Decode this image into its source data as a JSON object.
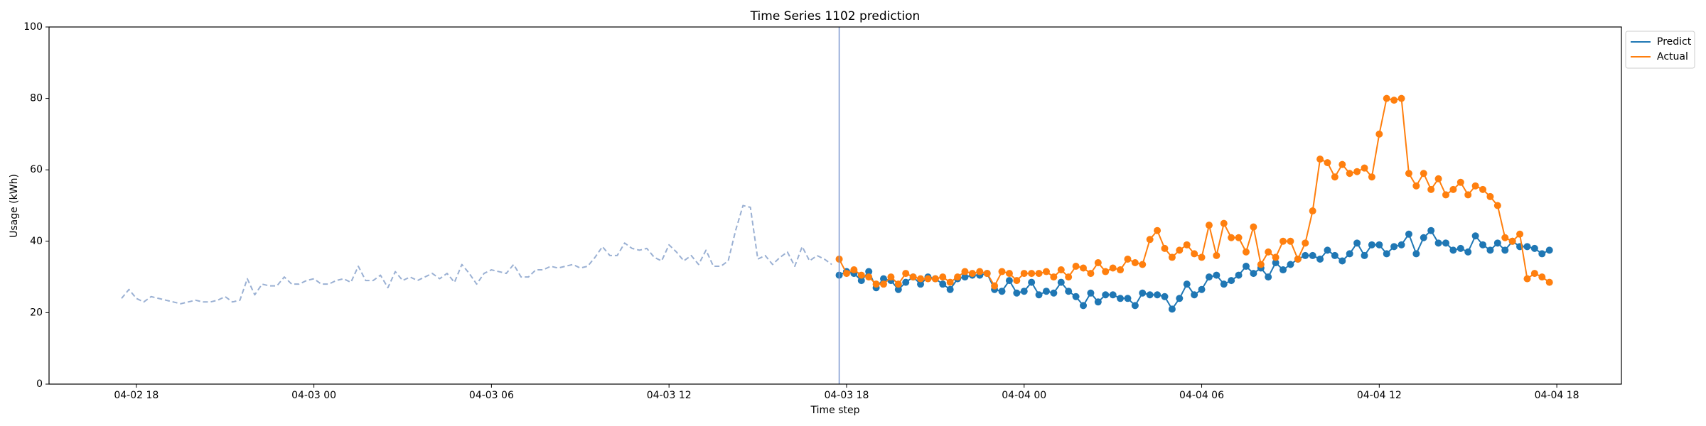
{
  "chart_data": {
    "type": "line",
    "title": "Time Series 1102 prediction",
    "x_label": "Time step",
    "y_label": "Usage (kWh)",
    "x": [
      "04-02 17:30",
      "04-02 17:45",
      "04-02 18:00",
      "04-02 18:15",
      "04-02 18:30",
      "04-02 18:45",
      "04-02 19:00",
      "04-02 19:15",
      "04-02 19:30",
      "04-02 19:45",
      "04-02 20:00",
      "04-02 20:15",
      "04-02 20:30",
      "04-02 20:45",
      "04-02 21:00",
      "04-02 21:15",
      "04-02 21:30",
      "04-02 21:45",
      "04-02 22:00",
      "04-02 22:15",
      "04-02 22:30",
      "04-02 22:45",
      "04-02 23:00",
      "04-02 23:15",
      "04-02 23:30",
      "04-02 23:45",
      "04-03 00:00",
      "04-03 00:15",
      "04-03 00:30",
      "04-03 00:45",
      "04-03 01:00",
      "04-03 01:15",
      "04-03 01:30",
      "04-03 01:45",
      "04-03 02:00",
      "04-03 02:15",
      "04-03 02:30",
      "04-03 02:45",
      "04-03 03:00",
      "04-03 03:15",
      "04-03 03:30",
      "04-03 03:45",
      "04-03 04:00",
      "04-03 04:15",
      "04-03 04:30",
      "04-03 04:45",
      "04-03 05:00",
      "04-03 05:15",
      "04-03 05:30",
      "04-03 05:45",
      "04-03 06:00",
      "04-03 06:15",
      "04-03 06:30",
      "04-03 06:45",
      "04-03 07:00",
      "04-03 07:15",
      "04-03 07:30",
      "04-03 07:45",
      "04-03 08:00",
      "04-03 08:15",
      "04-03 08:30",
      "04-03 08:45",
      "04-03 09:00",
      "04-03 09:15",
      "04-03 09:30",
      "04-03 09:45",
      "04-03 10:00",
      "04-03 10:15",
      "04-03 10:30",
      "04-03 10:45",
      "04-03 11:00",
      "04-03 11:15",
      "04-03 11:30",
      "04-03 11:45",
      "04-03 12:00",
      "04-03 12:15",
      "04-03 12:30",
      "04-03 12:45",
      "04-03 13:00",
      "04-03 13:15",
      "04-03 13:30",
      "04-03 13:45",
      "04-03 14:00",
      "04-03 14:15",
      "04-03 14:30",
      "04-03 14:45",
      "04-03 15:00",
      "04-03 15:15",
      "04-03 15:30",
      "04-03 15:45",
      "04-03 16:00",
      "04-03 16:15",
      "04-03 16:30",
      "04-03 16:45",
      "04-03 17:00",
      "04-03 17:15",
      "04-03 17:30",
      "04-03 17:45",
      "04-03 18:00",
      "04-03 18:15",
      "04-03 18:30",
      "04-03 18:45",
      "04-03 19:00",
      "04-03 19:15",
      "04-03 19:30",
      "04-03 19:45",
      "04-03 20:00",
      "04-03 20:15",
      "04-03 20:30",
      "04-03 20:45",
      "04-03 21:00",
      "04-03 21:15",
      "04-03 21:30",
      "04-03 21:45",
      "04-03 22:00",
      "04-03 22:15",
      "04-03 22:30",
      "04-03 22:45",
      "04-03 23:00",
      "04-03 23:15",
      "04-03 23:30",
      "04-03 23:45",
      "04-04 00:00",
      "04-04 00:15",
      "04-04 00:30",
      "04-04 00:45",
      "04-04 01:00",
      "04-04 01:15",
      "04-04 01:30",
      "04-04 01:45",
      "04-04 02:00",
      "04-04 02:15",
      "04-04 02:30",
      "04-04 02:45",
      "04-04 03:00",
      "04-04 03:15",
      "04-04 03:30",
      "04-04 03:45",
      "04-04 04:00",
      "04-04 04:15",
      "04-04 04:30",
      "04-04 04:45",
      "04-04 05:00",
      "04-04 05:15",
      "04-04 05:30",
      "04-04 05:45",
      "04-04 06:00",
      "04-04 06:15",
      "04-04 06:30",
      "04-04 06:45",
      "04-04 07:00",
      "04-04 07:15",
      "04-04 07:30",
      "04-04 07:45",
      "04-04 08:00",
      "04-04 08:15",
      "04-04 08:30",
      "04-04 08:45",
      "04-04 09:00",
      "04-04 09:15",
      "04-04 09:30",
      "04-04 09:45",
      "04-04 10:00",
      "04-04 10:15",
      "04-04 10:30",
      "04-04 10:45",
      "04-04 11:00",
      "04-04 11:15",
      "04-04 11:30",
      "04-04 11:45",
      "04-04 12:00",
      "04-04 12:15",
      "04-04 12:30",
      "04-04 12:45",
      "04-04 13:00",
      "04-04 13:15",
      "04-04 13:30",
      "04-04 13:45",
      "04-04 14:00",
      "04-04 14:15",
      "04-04 14:30",
      "04-04 14:45",
      "04-04 15:00",
      "04-04 15:15",
      "04-04 15:30",
      "04-04 15:45",
      "04-04 16:00",
      "04-04 16:15",
      "04-04 16:30",
      "04-04 16:45",
      "04-04 17:00",
      "04-04 17:15",
      "04-04 17:30",
      "04-04 17:45"
    ],
    "series": [
      {
        "color": "#9ab0d3",
        "dashed": true,
        "values": [
          24,
          26.5,
          24,
          23,
          24.5,
          24,
          23.5,
          23,
          22.5,
          23,
          23.5,
          23,
          23,
          23.5,
          24.5,
          23,
          23.5,
          29.5,
          25,
          28,
          27.5,
          27.5,
          30,
          28,
          28,
          29,
          29.5,
          28,
          28,
          29,
          29.5,
          28.5,
          33,
          29,
          29,
          30.5,
          27,
          31.5,
          29,
          30,
          29,
          30,
          31,
          29.5,
          31,
          28.5,
          33.5,
          31,
          28,
          31,
          32,
          31.5,
          31,
          33.5,
          30,
          30,
          32,
          32,
          33,
          32.5,
          33,
          33.5,
          32.5,
          33,
          35.5,
          38.5,
          36,
          36,
          39.5,
          38,
          37.5,
          38,
          35.5,
          34.5,
          39,
          37,
          34.5,
          36,
          33.5,
          37.5,
          33,
          33,
          34.5,
          43,
          50,
          49.5,
          35,
          36,
          33.5,
          35.5,
          37,
          33,
          38.5,
          34.5,
          36,
          35,
          33.5,
          null,
          null,
          null,
          null,
          null,
          null,
          null,
          null,
          null,
          null,
          null,
          null,
          null,
          null,
          null,
          null,
          null,
          null,
          null,
          null,
          null,
          null,
          null,
          null,
          null,
          null,
          null,
          null,
          null,
          null,
          null,
          null,
          null,
          null,
          null,
          null,
          null,
          null,
          null,
          null,
          null,
          null,
          null,
          null,
          null,
          null,
          null,
          null,
          null,
          null,
          null,
          null,
          null,
          null,
          null,
          null,
          null,
          null,
          null,
          null,
          null,
          null,
          null,
          null,
          null,
          null,
          null,
          null,
          null,
          null,
          null,
          null,
          null,
          null,
          null,
          null,
          null,
          null,
          null,
          null,
          null,
          null,
          null,
          null,
          null,
          null,
          null,
          null,
          null,
          null,
          null,
          null,
          null,
          null,
          null,
          null,
          null
        ]
      },
      {
        "name": "Predict",
        "color": "#1f77b4",
        "marker": true,
        "values": [
          null,
          null,
          null,
          null,
          null,
          null,
          null,
          null,
          null,
          null,
          null,
          null,
          null,
          null,
          null,
          null,
          null,
          null,
          null,
          null,
          null,
          null,
          null,
          null,
          null,
          null,
          null,
          null,
          null,
          null,
          null,
          null,
          null,
          null,
          null,
          null,
          null,
          null,
          null,
          null,
          null,
          null,
          null,
          null,
          null,
          null,
          null,
          null,
          null,
          null,
          null,
          null,
          null,
          null,
          null,
          null,
          null,
          null,
          null,
          null,
          null,
          null,
          null,
          null,
          null,
          null,
          null,
          null,
          null,
          null,
          null,
          null,
          null,
          null,
          null,
          null,
          null,
          null,
          null,
          null,
          null,
          null,
          null,
          null,
          null,
          null,
          null,
          null,
          null,
          null,
          null,
          null,
          null,
          null,
          null,
          null,
          null,
          30.5,
          31.5,
          31,
          29,
          31.5,
          27,
          29.5,
          29,
          26.5,
          28.5,
          30,
          28,
          30,
          29.5,
          28,
          26.5,
          29.5,
          30,
          30.5,
          30.5,
          31,
          26.5,
          26,
          29,
          25.5,
          26,
          28.5,
          25,
          26,
          25.5,
          28.5,
          26,
          24.5,
          22,
          25.5,
          23,
          25,
          25,
          24,
          24,
          22,
          25.5,
          25,
          25,
          24.5,
          21,
          24,
          28,
          25,
          26.5,
          30,
          30.5,
          28,
          29,
          30.5,
          33,
          31,
          32.5,
          30,
          34,
          32,
          33.5,
          35,
          36,
          36,
          35,
          37.5,
          36,
          34.5,
          36.5,
          39.5,
          36,
          39,
          39,
          36.5,
          38.5,
          39,
          42,
          36.5,
          41,
          43,
          39.5,
          39.5,
          37.5,
          38,
          37,
          41.5,
          39,
          37.5,
          39.5,
          37.5,
          40,
          38.5,
          38.5,
          38,
          36.5,
          37.5
        ]
      },
      {
        "name": "Actual",
        "color": "#ff7f0e",
        "marker": true,
        "values": [
          null,
          null,
          null,
          null,
          null,
          null,
          null,
          null,
          null,
          null,
          null,
          null,
          null,
          null,
          null,
          null,
          null,
          null,
          null,
          null,
          null,
          null,
          null,
          null,
          null,
          null,
          null,
          null,
          null,
          null,
          null,
          null,
          null,
          null,
          null,
          null,
          null,
          null,
          null,
          null,
          null,
          null,
          null,
          null,
          null,
          null,
          null,
          null,
          null,
          null,
          null,
          null,
          null,
          null,
          null,
          null,
          null,
          null,
          null,
          null,
          null,
          null,
          null,
          null,
          null,
          null,
          null,
          null,
          null,
          null,
          null,
          null,
          null,
          null,
          null,
          null,
          null,
          null,
          null,
          null,
          null,
          null,
          null,
          null,
          null,
          null,
          null,
          null,
          null,
          null,
          null,
          null,
          null,
          null,
          null,
          null,
          null,
          35,
          31,
          32,
          30.5,
          30,
          28,
          28,
          30,
          28,
          31,
          30,
          29.5,
          29.5,
          29.5,
          30,
          28.5,
          30,
          31.5,
          31,
          31.5,
          31,
          27.5,
          31.5,
          31,
          29,
          31,
          31,
          31,
          31.5,
          30,
          32,
          30,
          33,
          32.5,
          31,
          34,
          31.5,
          32.5,
          32,
          35,
          34,
          33.5,
          40.5,
          43,
          38,
          35.5,
          37.5,
          39,
          36.5,
          35.5,
          44.5,
          36,
          45,
          41,
          41,
          37,
          44,
          33.5,
          37,
          35.5,
          40,
          40,
          35,
          39.5,
          48.5,
          63,
          62,
          58,
          61.5,
          59,
          59.5,
          60.5,
          58,
          70,
          80,
          79.5,
          80,
          59,
          55.5,
          59,
          54.5,
          57.5,
          53,
          54.5,
          56.5,
          53,
          55.5,
          54.5,
          52.5,
          50,
          41,
          40,
          42,
          29.5,
          31,
          30,
          28.5
        ]
      }
    ],
    "vline": {
      "x": "04-03 17:45",
      "color": "#7b96cf"
    },
    "xlim": [
      "04-02 15:03",
      "04-04 20:11"
    ],
    "xticks": [
      "04-02 18",
      "04-03 00",
      "04-03 06",
      "04-03 12",
      "04-03 18",
      "04-04 00",
      "04-04 06",
      "04-04 12",
      "04-04 18"
    ],
    "ylim": [
      0,
      100
    ],
    "yticks": [
      0,
      20,
      40,
      60,
      80,
      100
    ],
    "legend": "upper-right-outside"
  }
}
